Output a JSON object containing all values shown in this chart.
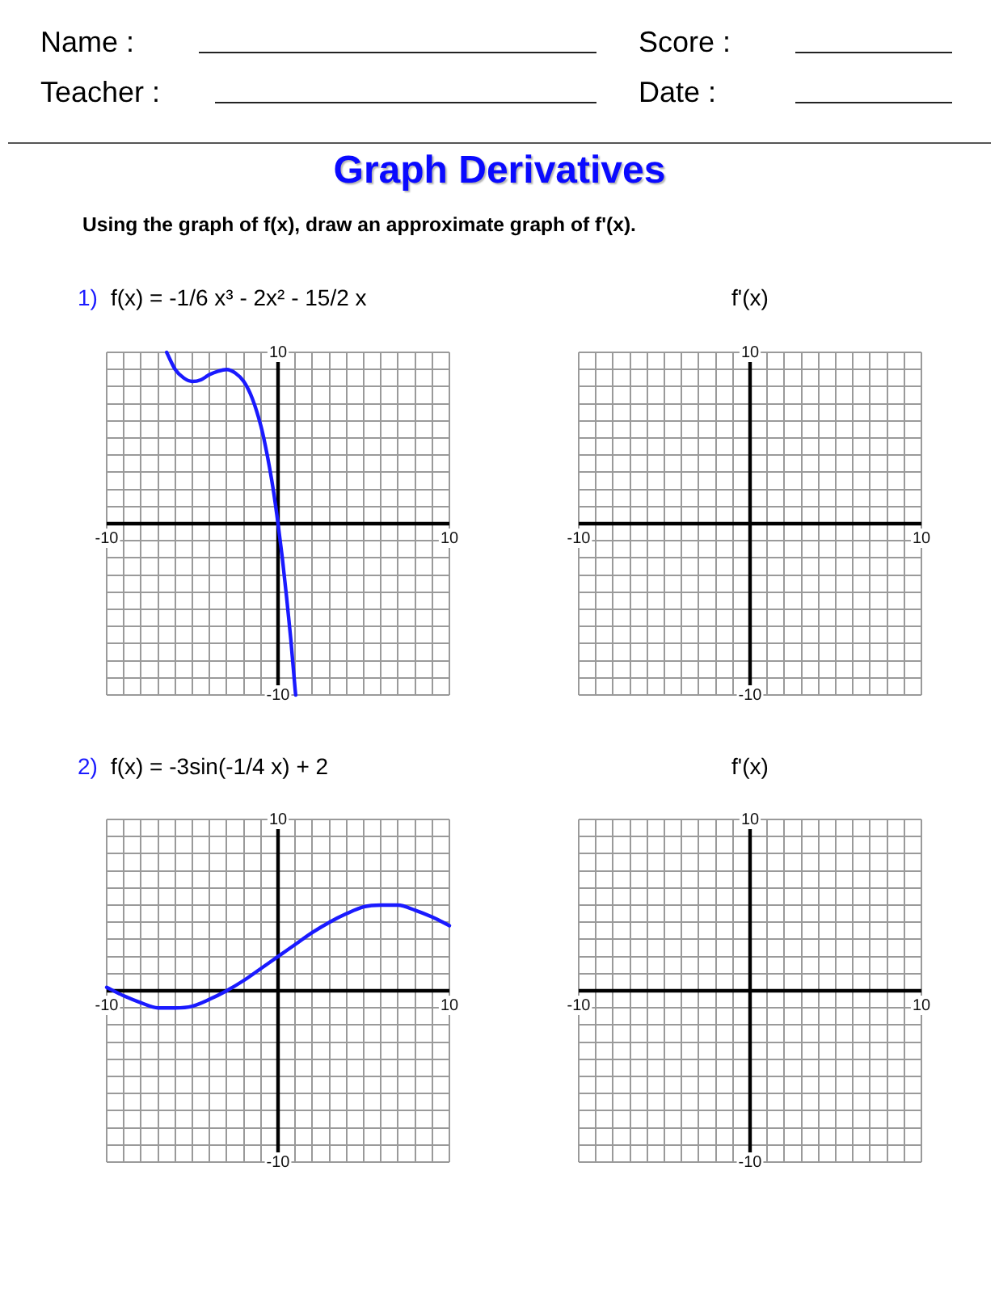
{
  "chart_data": [
    {
      "type": "other",
      "title": "Graph Derivatives",
      "subtitle": "Using the graph of f(x), draw an approximate graph of f'(x).",
      "annotations": [
        "Name :",
        "Score :",
        "Teacher :",
        "Date :"
      ]
    },
    {
      "type": "line",
      "title": "1) f(x) = -1/6 x³ - 2x² - 15/2 x",
      "xlim": [
        -10,
        10
      ],
      "ylim": [
        -10,
        10
      ],
      "xticks": [
        {
          "value": -10,
          "label": "-10"
        },
        {
          "value": -9,
          "label": null
        },
        {
          "value": -8,
          "label": null
        },
        {
          "value": -7,
          "label": null
        },
        {
          "value": -6,
          "label": null
        },
        {
          "value": -5,
          "label": null
        },
        {
          "value": -4,
          "label": null
        },
        {
          "value": -3,
          "label": null
        },
        {
          "value": -2,
          "label": null
        },
        {
          "value": -1,
          "label": null
        },
        {
          "value": 0,
          "label": null
        },
        {
          "value": 1,
          "label": null
        },
        {
          "value": 2,
          "label": null
        },
        {
          "value": 3,
          "label": null
        },
        {
          "value": 4,
          "label": null
        },
        {
          "value": 5,
          "label": null
        },
        {
          "value": 6,
          "label": null
        },
        {
          "value": 7,
          "label": null
        },
        {
          "value": 8,
          "label": null
        },
        {
          "value": 9,
          "label": null
        },
        {
          "value": 10,
          "label": "10"
        }
      ],
      "yticks": [
        {
          "value": -10,
          "label": "-10"
        },
        {
          "value": -9,
          "label": null
        },
        {
          "value": -8,
          "label": null
        },
        {
          "value": -7,
          "label": null
        },
        {
          "value": -6,
          "label": null
        },
        {
          "value": -5,
          "label": null
        },
        {
          "value": -4,
          "label": null
        },
        {
          "value": -3,
          "label": null
        },
        {
          "value": -2,
          "label": null
        },
        {
          "value": -1,
          "label": null
        },
        {
          "value": 0,
          "label": null
        },
        {
          "value": 1,
          "label": null
        },
        {
          "value": 2,
          "label": null
        },
        {
          "value": 3,
          "label": null
        },
        {
          "value": 4,
          "label": null
        },
        {
          "value": 5,
          "label": null
        },
        {
          "value": 6,
          "label": null
        },
        {
          "value": 7,
          "label": null
        },
        {
          "value": 8,
          "label": null
        },
        {
          "value": 9,
          "label": null
        },
        {
          "value": 10,
          "label": "10"
        }
      ],
      "grid": true,
      "series": [
        {
          "color": "#1a1aff",
          "x": [
            -6.5,
            -6,
            -5.5,
            -5,
            -4.5,
            -4,
            -3.5,
            -3,
            -2.5,
            -2,
            -1.5,
            -1,
            -0.75,
            -0.5,
            -0.25,
            0,
            0.25,
            0.5,
            0.75,
            1,
            1.03
          ],
          "values": [
            10,
            9,
            8.5,
            8.3,
            8.4,
            8.7,
            8.9,
            9,
            8.8,
            8.3,
            7.3,
            5.7,
            4.6,
            3.3,
            1.8,
            0,
            -2,
            -4.3,
            -6.8,
            -9.7,
            -10
          ]
        }
      ]
    },
    {
      "type": "line",
      "title": "f'(x)",
      "xlim": [
        -10,
        10
      ],
      "ylim": [
        -10,
        10
      ],
      "xticks": [
        {
          "value": -10,
          "label": "-10"
        },
        {
          "value": -9,
          "label": null
        },
        {
          "value": -8,
          "label": null
        },
        {
          "value": -7,
          "label": null
        },
        {
          "value": -6,
          "label": null
        },
        {
          "value": -5,
          "label": null
        },
        {
          "value": -4,
          "label": null
        },
        {
          "value": -3,
          "label": null
        },
        {
          "value": -2,
          "label": null
        },
        {
          "value": -1,
          "label": null
        },
        {
          "value": 0,
          "label": null
        },
        {
          "value": 1,
          "label": null
        },
        {
          "value": 2,
          "label": null
        },
        {
          "value": 3,
          "label": null
        },
        {
          "value": 4,
          "label": null
        },
        {
          "value": 5,
          "label": null
        },
        {
          "value": 6,
          "label": null
        },
        {
          "value": 7,
          "label": null
        },
        {
          "value": 8,
          "label": null
        },
        {
          "value": 9,
          "label": null
        },
        {
          "value": 10,
          "label": "10"
        }
      ],
      "yticks": [
        {
          "value": -10,
          "label": "-10"
        },
        {
          "value": -9,
          "label": null
        },
        {
          "value": -8,
          "label": null
        },
        {
          "value": -7,
          "label": null
        },
        {
          "value": -6,
          "label": null
        },
        {
          "value": -5,
          "label": null
        },
        {
          "value": -4,
          "label": null
        },
        {
          "value": -3,
          "label": null
        },
        {
          "value": -2,
          "label": null
        },
        {
          "value": -1,
          "label": null
        },
        {
          "value": 0,
          "label": null
        },
        {
          "value": 1,
          "label": null
        },
        {
          "value": 2,
          "label": null
        },
        {
          "value": 3,
          "label": null
        },
        {
          "value": 4,
          "label": null
        },
        {
          "value": 5,
          "label": null
        },
        {
          "value": 6,
          "label": null
        },
        {
          "value": 7,
          "label": null
        },
        {
          "value": 8,
          "label": null
        },
        {
          "value": 9,
          "label": null
        },
        {
          "value": 10,
          "label": "10"
        }
      ],
      "grid": true
    },
    {
      "type": "line",
      "title": "2) f(x) = -3sin(-1/4 x) + 2",
      "xlim": [
        -10,
        10
      ],
      "ylim": [
        -10,
        10
      ],
      "xticks": [
        {
          "value": -10,
          "label": "-10"
        },
        {
          "value": -9,
          "label": null
        },
        {
          "value": -8,
          "label": null
        },
        {
          "value": -7,
          "label": null
        },
        {
          "value": -6,
          "label": null
        },
        {
          "value": -5,
          "label": null
        },
        {
          "value": -4,
          "label": null
        },
        {
          "value": -3,
          "label": null
        },
        {
          "value": -2,
          "label": null
        },
        {
          "value": -1,
          "label": null
        },
        {
          "value": 0,
          "label": null
        },
        {
          "value": 1,
          "label": null
        },
        {
          "value": 2,
          "label": null
        },
        {
          "value": 3,
          "label": null
        },
        {
          "value": 4,
          "label": null
        },
        {
          "value": 5,
          "label": null
        },
        {
          "value": 6,
          "label": null
        },
        {
          "value": 7,
          "label": null
        },
        {
          "value": 8,
          "label": null
        },
        {
          "value": 9,
          "label": null
        },
        {
          "value": 10,
          "label": "10"
        }
      ],
      "yticks": [
        {
          "value": -10,
          "label": "-10"
        },
        {
          "value": -9,
          "label": null
        },
        {
          "value": -8,
          "label": null
        },
        {
          "value": -7,
          "label": null
        },
        {
          "value": -6,
          "label": null
        },
        {
          "value": -5,
          "label": null
        },
        {
          "value": -4,
          "label": null
        },
        {
          "value": -3,
          "label": null
        },
        {
          "value": -2,
          "label": null
        },
        {
          "value": -1,
          "label": null
        },
        {
          "value": 0,
          "label": null
        },
        {
          "value": 1,
          "label": null
        },
        {
          "value": 2,
          "label": null
        },
        {
          "value": 3,
          "label": null
        },
        {
          "value": 4,
          "label": null
        },
        {
          "value": 5,
          "label": null
        },
        {
          "value": 6,
          "label": null
        },
        {
          "value": 7,
          "label": null
        },
        {
          "value": 8,
          "label": null
        },
        {
          "value": 9,
          "label": null
        },
        {
          "value": 10,
          "label": "10"
        }
      ],
      "grid": true,
      "series": [
        {
          "color": "#1a1aff",
          "x": [
            -10,
            -9,
            -8,
            -7,
            -6,
            -5,
            -4,
            -3,
            -2,
            -1,
            0,
            1,
            2,
            3,
            4,
            5,
            6,
            7,
            8,
            9,
            10
          ],
          "values": [
            0.2,
            -0.3,
            -0.7,
            -1,
            -1,
            -0.9,
            -0.5,
            0,
            0.6,
            1.3,
            2,
            2.7,
            3.4,
            4,
            4.5,
            4.9,
            5,
            5,
            4.7,
            4.3,
            3.8
          ]
        }
      ]
    },
    {
      "type": "line",
      "title": "f'(x)",
      "xlim": [
        -10,
        10
      ],
      "ylim": [
        -10,
        10
      ],
      "xticks": [
        {
          "value": -10,
          "label": "-10"
        },
        {
          "value": -9,
          "label": null
        },
        {
          "value": -8,
          "label": null
        },
        {
          "value": -7,
          "label": null
        },
        {
          "value": -6,
          "label": null
        },
        {
          "value": -5,
          "label": null
        },
        {
          "value": -4,
          "label": null
        },
        {
          "value": -3,
          "label": null
        },
        {
          "value": -2,
          "label": null
        },
        {
          "value": -1,
          "label": null
        },
        {
          "value": 0,
          "label": null
        },
        {
          "value": 1,
          "label": null
        },
        {
          "value": 2,
          "label": null
        },
        {
          "value": 3,
          "label": null
        },
        {
          "value": 4,
          "label": null
        },
        {
          "value": 5,
          "label": null
        },
        {
          "value": 6,
          "label": null
        },
        {
          "value": 7,
          "label": null
        },
        {
          "value": 8,
          "label": null
        },
        {
          "value": 9,
          "label": null
        },
        {
          "value": 10,
          "label": "10"
        }
      ],
      "yticks": [
        {
          "value": -10,
          "label": "-10"
        },
        {
          "value": -9,
          "label": null
        },
        {
          "value": -8,
          "label": null
        },
        {
          "value": -7,
          "label": null
        },
        {
          "value": -6,
          "label": null
        },
        {
          "value": -5,
          "label": null
        },
        {
          "value": -4,
          "label": null
        },
        {
          "value": -3,
          "label": null
        },
        {
          "value": -2,
          "label": null
        },
        {
          "value": -1,
          "label": null
        },
        {
          "value": 0,
          "label": null
        },
        {
          "value": 1,
          "label": null
        },
        {
          "value": 2,
          "label": null
        },
        {
          "value": 3,
          "label": null
        },
        {
          "value": 4,
          "label": null
        },
        {
          "value": 5,
          "label": null
        },
        {
          "value": 6,
          "label": null
        },
        {
          "value": 7,
          "label": null
        },
        {
          "value": 8,
          "label": null
        },
        {
          "value": 9,
          "label": null
        },
        {
          "value": 10,
          "label": "10"
        }
      ],
      "grid": true
    }
  ]
}
